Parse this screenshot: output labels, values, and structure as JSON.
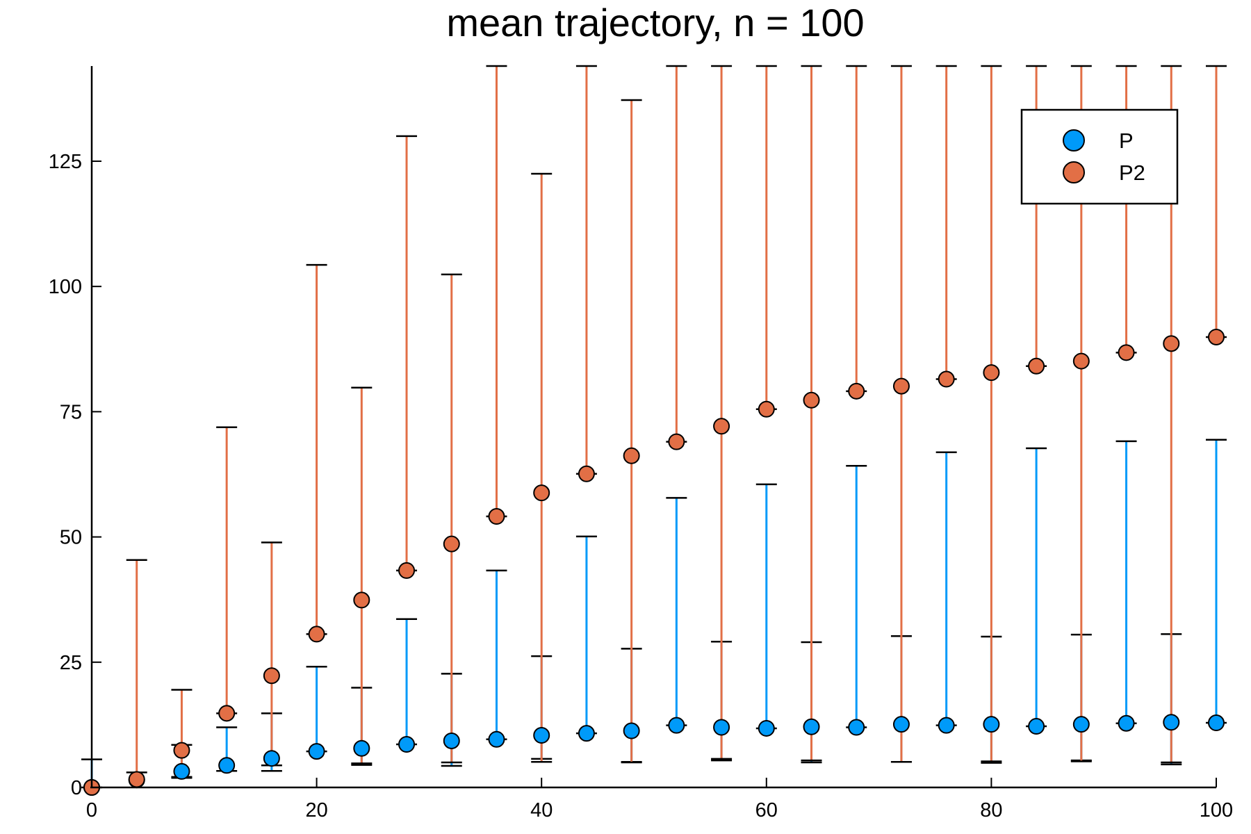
{
  "chart_data": {
    "type": "scatter",
    "title": "mean trajectory, n = 100",
    "xlabel": "",
    "ylabel": "",
    "xlim": [
      0,
      100
    ],
    "ylim": [
      0,
      144
    ],
    "xticks": [
      "0",
      "20",
      "40",
      "60",
      "80",
      "100"
    ],
    "yticks": [
      "0",
      "25",
      "50",
      "75",
      "100",
      "125"
    ],
    "grid": false,
    "legend_position": "top-right",
    "x": [
      0,
      4,
      8,
      12,
      16,
      20,
      24,
      28,
      32,
      36,
      40,
      44,
      48,
      52,
      56,
      60,
      64,
      68,
      72,
      76,
      80,
      84,
      88,
      92,
      96,
      100
    ],
    "series": [
      {
        "name": "P",
        "color": "#009af9",
        "values": [
          0,
          1.5,
          3.2,
          4.4,
          5.8,
          7.2,
          7.8,
          8.6,
          9.3,
          9.6,
          10.4,
          10.8,
          11.3,
          12.4,
          12.0,
          11.8,
          12.1,
          12.0,
          12.6,
          12.4,
          12.6,
          12.2,
          12.6,
          12.8,
          13.0,
          12.9
        ],
        "error_low": [
          0,
          1.5,
          1.3,
          1.1,
          2.5,
          0,
          3.3,
          0,
          5.0,
          0,
          4.7,
          0,
          6.2,
          0,
          6.6,
          0,
          7.1,
          0,
          7.5,
          0,
          7.7,
          0,
          7.2,
          0,
          8.4,
          0
        ],
        "error_high": [
          5.6,
          1.5,
          5.3,
          7.6,
          9.0,
          16.9,
          12.1,
          25.0,
          13.4,
          33.7,
          15.8,
          39.3,
          16.4,
          45.4,
          17.1,
          48.7,
          16.9,
          52.2,
          17.6,
          54.5,
          17.5,
          55.5,
          17.9,
          56.3,
          17.6,
          56.5
        ]
      },
      {
        "name": "P2",
        "color": "#e26f46",
        "values": [
          0,
          1.6,
          7.4,
          14.8,
          22.3,
          30.6,
          37.4,
          43.3,
          48.6,
          54.1,
          58.8,
          62.6,
          66.2,
          69.0,
          72.1,
          75.5,
          77.3,
          79.1,
          80.1,
          81.5,
          82.8,
          84.1,
          85.1,
          86.8,
          88.6,
          89.9
        ],
        "error_low": [
          0,
          1.6,
          5.3,
          0,
          17.9,
          0,
          32.6,
          0,
          43.6,
          0,
          53.7,
          0,
          61.2,
          0,
          66.4,
          0,
          71.9,
          0,
          75.0,
          0,
          77.6,
          0,
          79.9,
          0,
          83.6,
          0
        ],
        "error_high": [
          0,
          43.8,
          12.1,
          57.1,
          26.6,
          73.7,
          42.4,
          86.7,
          53.8,
          98.9,
          63.7,
          109.1,
          71.0,
          117.2,
          77.8,
          125.3,
          82.7,
          130.7,
          85.1,
          135.3,
          88.2,
          138.1,
          90.3,
          141.0,
          93.4,
          144
        ]
      }
    ]
  }
}
